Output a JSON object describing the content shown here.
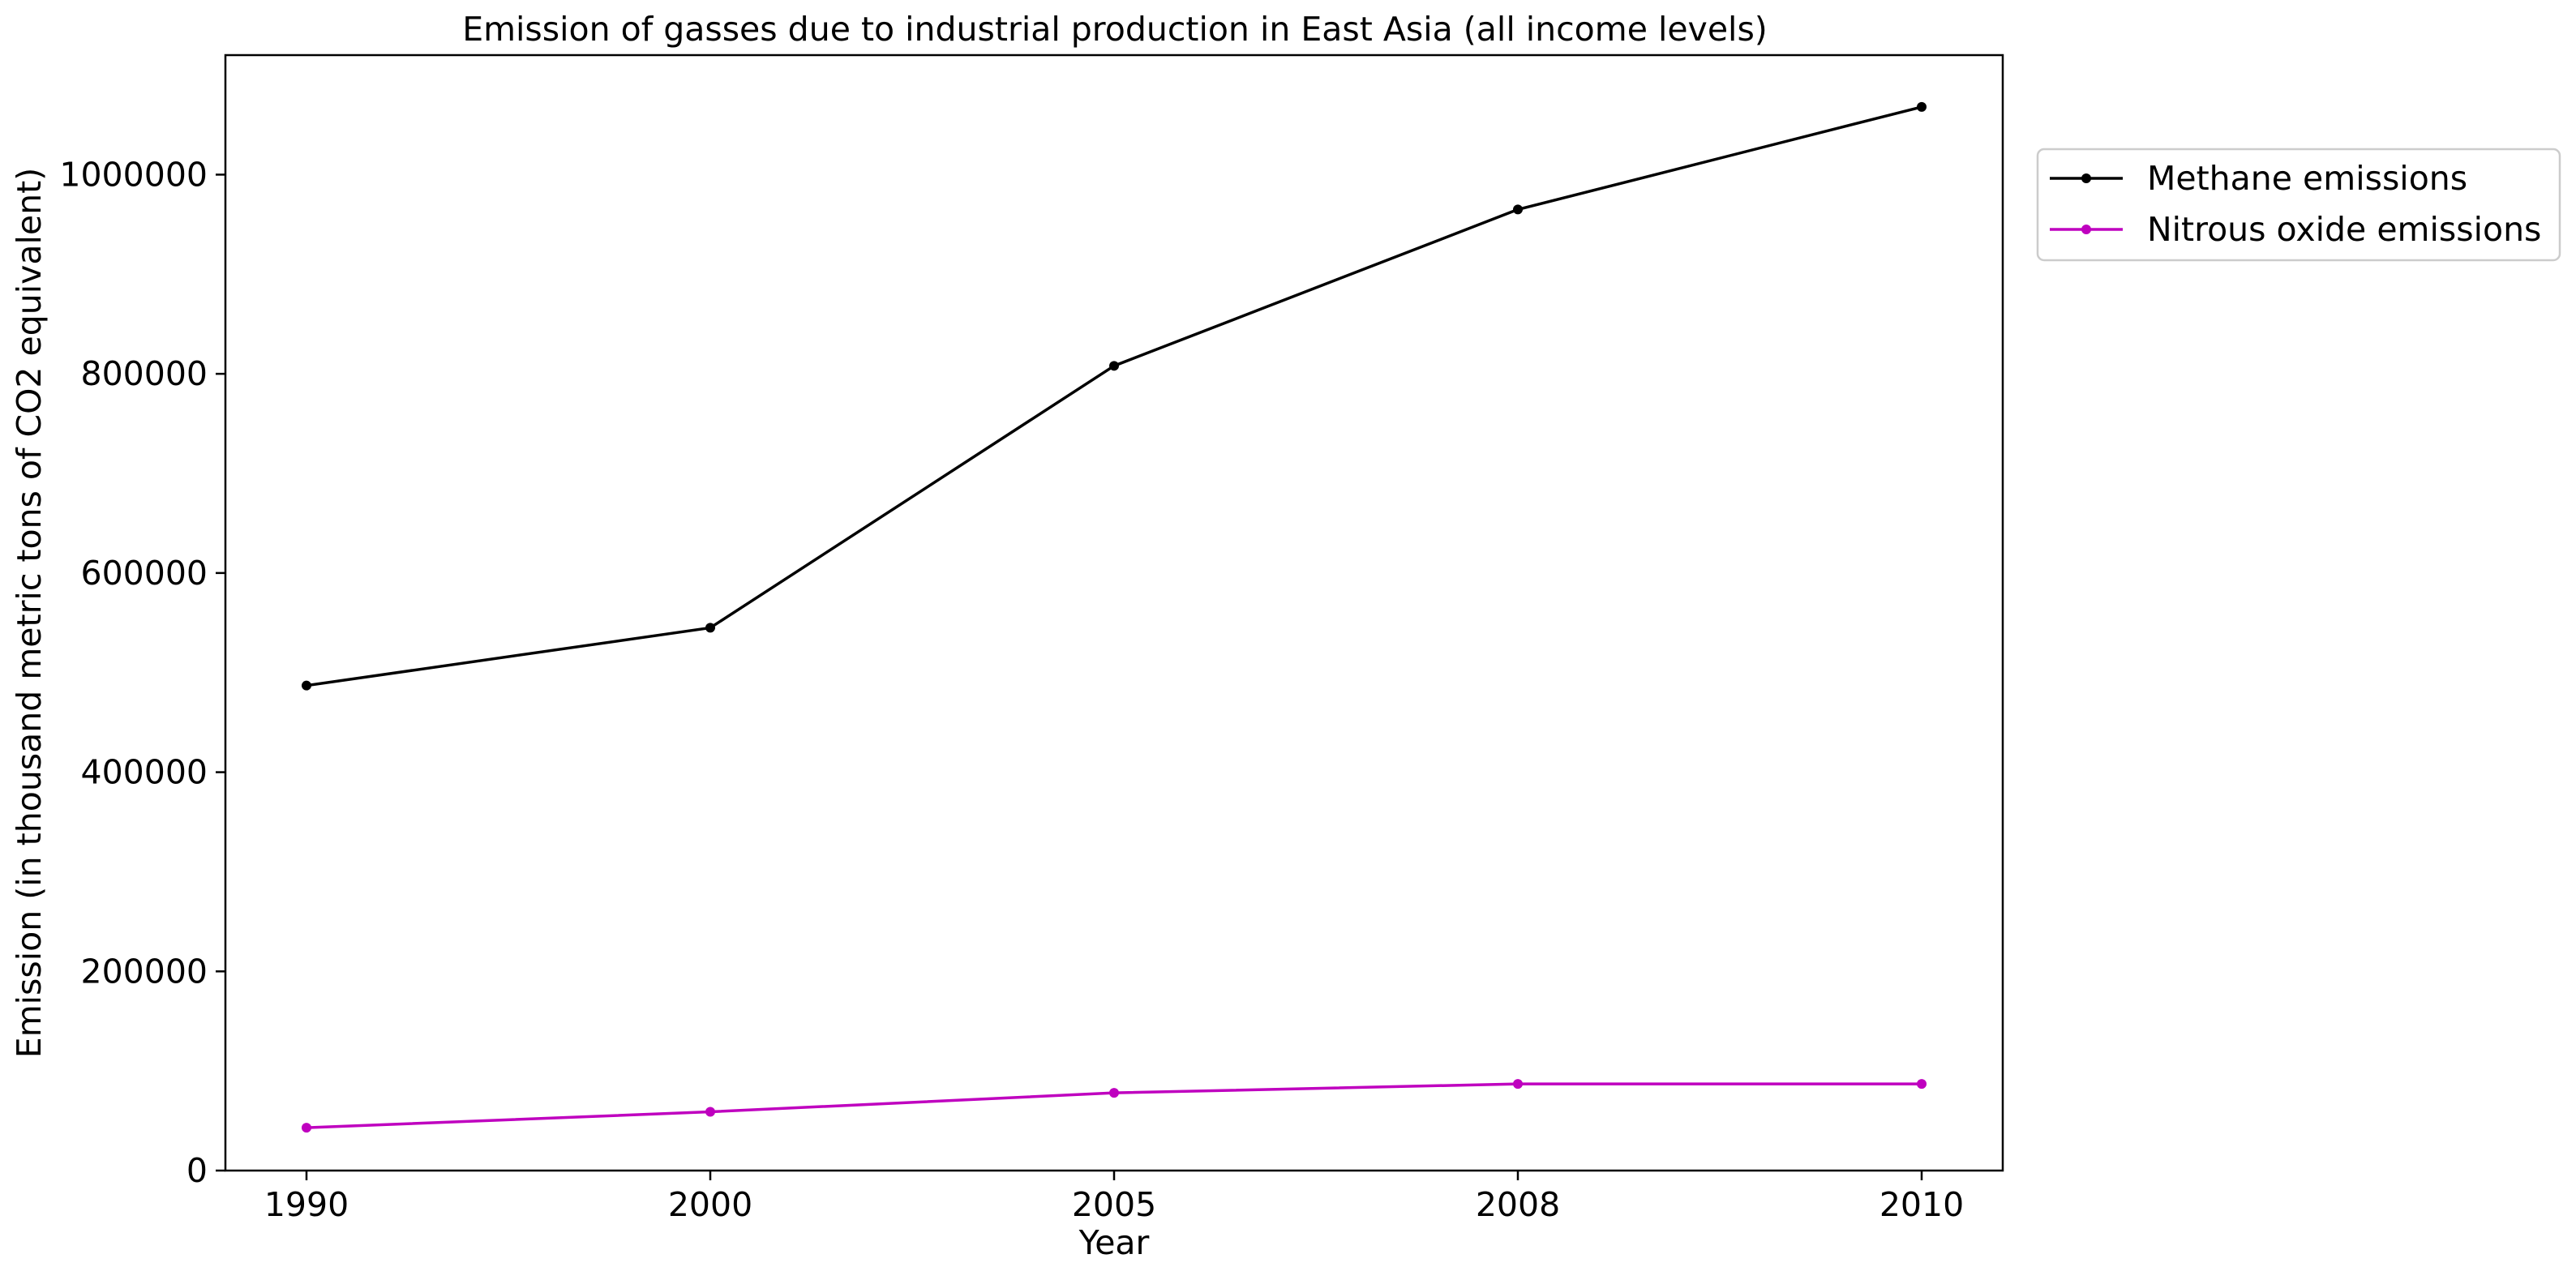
{
  "chart_data": {
    "type": "line",
    "title": "Emission of gasses due to industrial production in East Asia (all income levels)",
    "xlabel": "Year",
    "ylabel": "Emission (in thousand metric tons of CO2 equivalent)",
    "x": [
      "1990",
      "2000",
      "2005",
      "2008",
      "2010"
    ],
    "ylim": [
      0,
      1120000
    ],
    "yticks": [
      0,
      200000,
      400000,
      600000,
      800000,
      1000000
    ],
    "ytick_labels": [
      "0",
      "200000",
      "400000",
      "600000",
      "800000",
      "1000000"
    ],
    "grid": false,
    "legend_position": "outside-top-right",
    "series": [
      {
        "name": "Methane emissions",
        "color": "#000000",
        "values": [
          487000,
          545000,
          808000,
          965000,
          1068000
        ]
      },
      {
        "name": "Nitrous oxide emissions",
        "color": "#bf00bf",
        "values": [
          43000,
          59000,
          78000,
          87000,
          87000
        ]
      }
    ]
  }
}
